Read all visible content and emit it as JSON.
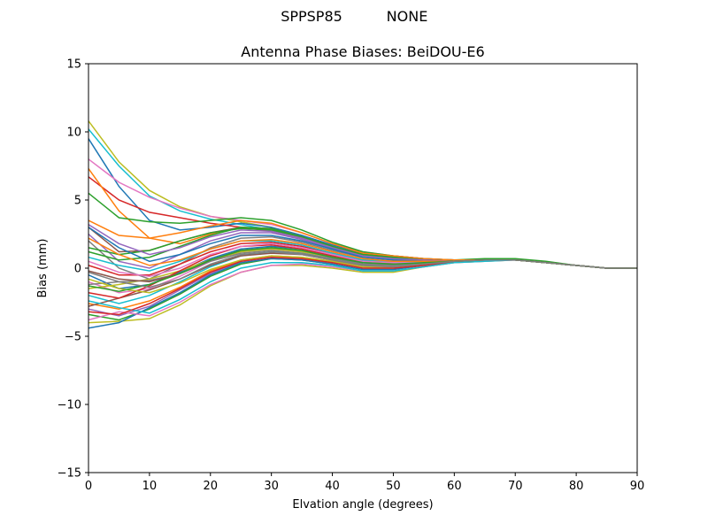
{
  "suptitle": {
    "left": "SPPSP85",
    "right": "NONE"
  },
  "chart_data": {
    "type": "line",
    "title": "Antenna Phase Biases: BeiDOU-E6",
    "xlabel": "Elvation angle (degrees)",
    "ylabel": "Bias (mm)",
    "xlim": [
      0,
      90
    ],
    "ylim": [
      -15,
      15
    ],
    "xticks": [
      0,
      10,
      20,
      30,
      40,
      50,
      60,
      70,
      80,
      90
    ],
    "yticks": [
      -15,
      -10,
      -5,
      0,
      5,
      10,
      15
    ],
    "ytick_labels": [
      "−15",
      "−10",
      "−5",
      "0",
      "5",
      "10",
      "15"
    ],
    "grid": false,
    "x": [
      0,
      5,
      10,
      15,
      20,
      25,
      30,
      35,
      40,
      45,
      50,
      55,
      60,
      65,
      70,
      75,
      80,
      85,
      90
    ],
    "series": [
      {
        "color": "#bcbd22",
        "values": [
          10.8,
          7.8,
          5.7,
          4.5,
          3.8,
          3.4,
          3.0,
          2.4,
          1.6,
          1.0,
          0.8,
          0.6,
          0.5,
          0.6,
          0.6,
          0.4,
          0.2,
          0.0,
          0.0
        ]
      },
      {
        "color": "#17becf",
        "values": [
          10.2,
          7.5,
          5.3,
          4.2,
          3.6,
          3.2,
          2.8,
          2.2,
          1.5,
          1.0,
          0.8,
          0.6,
          0.5,
          0.6,
          0.6,
          0.4,
          0.2,
          0.0,
          0.0
        ]
      },
      {
        "color": "#1f77b4",
        "values": [
          9.5,
          6.0,
          3.5,
          2.8,
          3.0,
          3.3,
          3.0,
          2.4,
          1.7,
          1.1,
          0.9,
          0.7,
          0.6,
          0.6,
          0.6,
          0.4,
          0.2,
          0.0,
          0.0
        ]
      },
      {
        "color": "#d62728",
        "values": [
          6.7,
          5.0,
          4.1,
          3.7,
          3.3,
          3.0,
          2.7,
          2.2,
          1.5,
          1.0,
          0.7,
          0.6,
          0.5,
          0.6,
          0.6,
          0.4,
          0.2,
          0.0,
          0.0
        ]
      },
      {
        "color": "#e377c2",
        "values": [
          8.0,
          6.3,
          5.2,
          4.4,
          3.8,
          3.5,
          3.2,
          2.6,
          1.8,
          1.2,
          0.9,
          0.7,
          0.6,
          0.6,
          0.6,
          0.4,
          0.2,
          0.0,
          0.0
        ]
      },
      {
        "color": "#ff7f0e",
        "values": [
          7.3,
          4.2,
          2.2,
          1.8,
          2.5,
          3.0,
          2.8,
          2.3,
          1.6,
          1.0,
          0.8,
          0.6,
          0.5,
          0.6,
          0.6,
          0.4,
          0.2,
          0.0,
          0.0
        ]
      },
      {
        "color": "#2ca02c",
        "values": [
          5.5,
          3.7,
          3.4,
          3.3,
          3.5,
          3.7,
          3.5,
          2.8,
          1.9,
          1.2,
          0.9,
          0.7,
          0.6,
          0.7,
          0.7,
          0.5,
          0.2,
          0.0,
          0.0
        ]
      },
      {
        "color": "#ff7f0e",
        "values": [
          3.5,
          2.4,
          2.2,
          2.6,
          3.1,
          3.5,
          3.3,
          2.6,
          1.8,
          1.1,
          0.9,
          0.7,
          0.6,
          0.6,
          0.6,
          0.4,
          0.2,
          0.0,
          0.0
        ]
      },
      {
        "color": "#8c564b",
        "values": [
          3.0,
          1.2,
          1.3,
          2.0,
          2.6,
          3.0,
          2.9,
          2.3,
          1.6,
          1.0,
          0.8,
          0.6,
          0.5,
          0.6,
          0.6,
          0.4,
          0.2,
          0.0,
          0.0
        ]
      },
      {
        "color": "#9467bd",
        "values": [
          2.5,
          0.5,
          0.0,
          1.0,
          2.0,
          2.6,
          2.6,
          2.1,
          1.4,
          0.9,
          0.7,
          0.6,
          0.5,
          0.6,
          0.6,
          0.4,
          0.2,
          0.0,
          0.0
        ]
      },
      {
        "color": "#7f7f7f",
        "values": [
          2.0,
          0.0,
          -0.8,
          0.3,
          1.5,
          2.2,
          2.3,
          1.9,
          1.3,
          0.8,
          0.6,
          0.5,
          0.5,
          0.6,
          0.6,
          0.4,
          0.2,
          0.0,
          0.0
        ]
      },
      {
        "color": "#2ca02c",
        "values": [
          1.5,
          1.0,
          1.3,
          2.0,
          2.6,
          2.9,
          2.8,
          2.3,
          1.6,
          1.0,
          0.8,
          0.6,
          0.5,
          0.6,
          0.6,
          0.4,
          0.2,
          0.0,
          0.0
        ]
      },
      {
        "color": "#d62728",
        "values": [
          0.2,
          -0.5,
          -0.5,
          0.3,
          1.2,
          1.8,
          1.9,
          1.6,
          1.1,
          0.6,
          0.5,
          0.5,
          0.5,
          0.6,
          0.6,
          0.4,
          0.2,
          0.0,
          0.0
        ]
      },
      {
        "color": "#1f77b4",
        "values": [
          -0.5,
          -1.5,
          -1.2,
          -0.3,
          0.7,
          1.4,
          1.6,
          1.4,
          0.9,
          0.5,
          0.4,
          0.4,
          0.5,
          0.6,
          0.6,
          0.4,
          0.2,
          0.0,
          0.0
        ]
      },
      {
        "color": "#e377c2",
        "values": [
          -1.0,
          -1.8,
          -1.5,
          -0.6,
          0.5,
          1.2,
          1.4,
          1.2,
          0.8,
          0.4,
          0.3,
          0.4,
          0.5,
          0.6,
          0.6,
          0.4,
          0.2,
          0.0,
          0.0
        ]
      },
      {
        "color": "#bcbd22",
        "values": [
          -1.5,
          -1.2,
          -0.8,
          -0.2,
          0.6,
          1.2,
          1.4,
          1.2,
          0.8,
          0.4,
          0.3,
          0.4,
          0.5,
          0.6,
          0.6,
          0.4,
          0.2,
          0.0,
          0.0
        ]
      },
      {
        "color": "#17becf",
        "values": [
          -2.0,
          -2.6,
          -2.0,
          -1.0,
          0.1,
          0.9,
          1.2,
          1.1,
          0.7,
          0.3,
          0.2,
          0.3,
          0.5,
          0.6,
          0.6,
          0.4,
          0.2,
          0.0,
          0.0
        ]
      },
      {
        "color": "#ff7f0e",
        "values": [
          -2.6,
          -3.0,
          -2.4,
          -1.4,
          -0.2,
          0.6,
          0.9,
          0.8,
          0.5,
          0.2,
          0.1,
          0.3,
          0.5,
          0.6,
          0.6,
          0.4,
          0.2,
          0.0,
          0.0
        ]
      },
      {
        "color": "#9467bd",
        "values": [
          -3.0,
          -3.5,
          -2.8,
          -1.6,
          -0.4,
          0.5,
          0.8,
          0.7,
          0.4,
          0.1,
          0.0,
          0.3,
          0.5,
          0.6,
          0.6,
          0.4,
          0.2,
          0.0,
          0.0
        ]
      },
      {
        "color": "#2ca02c",
        "values": [
          -3.4,
          -3.8,
          -3.0,
          -1.9,
          -0.6,
          0.3,
          0.7,
          0.6,
          0.3,
          -0.1,
          -0.1,
          0.2,
          0.5,
          0.6,
          0.6,
          0.4,
          0.2,
          0.0,
          0.0
        ]
      },
      {
        "color": "#bcbd22",
        "values": [
          -4.0,
          -3.9,
          -3.7,
          -2.7,
          -1.3,
          -0.3,
          0.2,
          0.2,
          0.0,
          -0.3,
          -0.3,
          0.1,
          0.4,
          0.5,
          0.6,
          0.4,
          0.2,
          0.0,
          0.0
        ]
      },
      {
        "color": "#1f77b4",
        "values": [
          -4.4,
          -4.0,
          -2.9,
          -1.8,
          -0.5,
          0.4,
          0.7,
          0.6,
          0.3,
          -0.1,
          -0.1,
          0.2,
          0.5,
          0.6,
          0.6,
          0.4,
          0.2,
          0.0,
          0.0
        ]
      },
      {
        "color": "#e377c2",
        "values": [
          -3.8,
          -3.2,
          -3.5,
          -2.5,
          -1.2,
          -0.3,
          0.2,
          0.3,
          0.1,
          -0.2,
          -0.2,
          0.1,
          0.4,
          0.5,
          0.6,
          0.4,
          0.2,
          0.0,
          0.0
        ]
      },
      {
        "color": "#8c564b",
        "values": [
          -2.8,
          -2.2,
          -1.6,
          -0.8,
          0.2,
          0.9,
          1.1,
          1.0,
          0.6,
          0.2,
          0.1,
          0.3,
          0.5,
          0.6,
          0.6,
          0.4,
          0.2,
          0.0,
          0.0
        ]
      },
      {
        "color": "#7f7f7f",
        "values": [
          -1.2,
          -1.0,
          -0.9,
          -0.4,
          0.5,
          1.1,
          1.3,
          1.1,
          0.7,
          0.3,
          0.2,
          0.3,
          0.5,
          0.6,
          0.6,
          0.4,
          0.2,
          0.0,
          0.0
        ]
      },
      {
        "color": "#d62728",
        "values": [
          -1.8,
          -2.2,
          -1.3,
          -0.2,
          0.9,
          1.6,
          1.7,
          1.4,
          0.9,
          0.5,
          0.4,
          0.4,
          0.5,
          0.6,
          0.6,
          0.4,
          0.2,
          0.0,
          0.0
        ]
      },
      {
        "color": "#17becf",
        "values": [
          0.8,
          0.2,
          -0.2,
          0.5,
          1.4,
          2.0,
          2.0,
          1.7,
          1.1,
          0.6,
          0.5,
          0.5,
          0.5,
          0.6,
          0.6,
          0.4,
          0.2,
          0.0,
          0.0
        ]
      },
      {
        "color": "#2ca02c",
        "values": [
          1.2,
          0.6,
          0.8,
          1.6,
          2.4,
          3.0,
          2.9,
          2.3,
          1.6,
          1.0,
          0.8,
          0.6,
          0.5,
          0.6,
          0.6,
          0.4,
          0.2,
          0.0,
          0.0
        ]
      },
      {
        "color": "#9467bd",
        "values": [
          3.2,
          1.8,
          1.0,
          1.5,
          2.3,
          2.8,
          2.7,
          2.2,
          1.5,
          0.9,
          0.7,
          0.6,
          0.5,
          0.6,
          0.6,
          0.4,
          0.2,
          0.0,
          0.0
        ]
      },
      {
        "color": "#8c564b",
        "values": [
          -0.2,
          -0.8,
          -1.0,
          -0.4,
          0.6,
          1.3,
          1.5,
          1.3,
          0.8,
          0.4,
          0.3,
          0.4,
          0.5,
          0.6,
          0.6,
          0.4,
          0.2,
          0.0,
          0.0
        ]
      },
      {
        "color": "#e377c2",
        "values": [
          0.5,
          -0.3,
          -0.6,
          0.0,
          1.0,
          1.6,
          1.8,
          1.5,
          1.0,
          0.5,
          0.4,
          0.4,
          0.5,
          0.6,
          0.6,
          0.4,
          0.2,
          0.0,
          0.0
        ]
      },
      {
        "color": "#bcbd22",
        "values": [
          -0.8,
          -1.5,
          -1.8,
          -1.1,
          -0.1,
          0.6,
          0.9,
          0.8,
          0.5,
          0.1,
          0.0,
          0.3,
          0.5,
          0.6,
          0.6,
          0.4,
          0.2,
          0.0,
          0.0
        ]
      },
      {
        "color": "#1f77b4",
        "values": [
          3.0,
          1.5,
          0.5,
          1.0,
          1.8,
          2.4,
          2.4,
          2.0,
          1.4,
          0.8,
          0.6,
          0.5,
          0.5,
          0.6,
          0.6,
          0.4,
          0.2,
          0.0,
          0.0
        ]
      },
      {
        "color": "#ff7f0e",
        "values": [
          2.2,
          1.0,
          0.2,
          0.6,
          1.4,
          2.0,
          2.1,
          1.8,
          1.2,
          0.7,
          0.5,
          0.5,
          0.5,
          0.6,
          0.6,
          0.4,
          0.2,
          0.0,
          0.0
        ]
      },
      {
        "color": "#17becf",
        "values": [
          -2.4,
          -2.9,
          -3.3,
          -2.3,
          -1.0,
          0.0,
          0.4,
          0.4,
          0.2,
          -0.2,
          -0.2,
          0.1,
          0.4,
          0.5,
          0.6,
          0.4,
          0.2,
          0.0,
          0.0
        ]
      },
      {
        "color": "#d62728",
        "values": [
          -3.2,
          -3.4,
          -2.6,
          -1.5,
          -0.3,
          0.5,
          0.8,
          0.7,
          0.4,
          0.0,
          0.0,
          0.2,
          0.5,
          0.6,
          0.6,
          0.4,
          0.2,
          0.0,
          0.0
        ]
      },
      {
        "color": "#2ca02c",
        "values": [
          -1.3,
          -1.7,
          -1.2,
          -0.4,
          0.6,
          1.3,
          1.5,
          1.3,
          0.8,
          0.4,
          0.3,
          0.4,
          0.5,
          0.6,
          0.6,
          0.4,
          0.2,
          0.0,
          0.0
        ]
      },
      {
        "color": "#7f7f7f",
        "values": [
          -0.3,
          -1.0,
          -1.4,
          -0.8,
          0.3,
          1.0,
          1.2,
          1.0,
          0.6,
          0.2,
          0.1,
          0.3,
          0.5,
          0.6,
          0.6,
          0.4,
          0.2,
          0.0,
          0.0
        ]
      }
    ]
  }
}
